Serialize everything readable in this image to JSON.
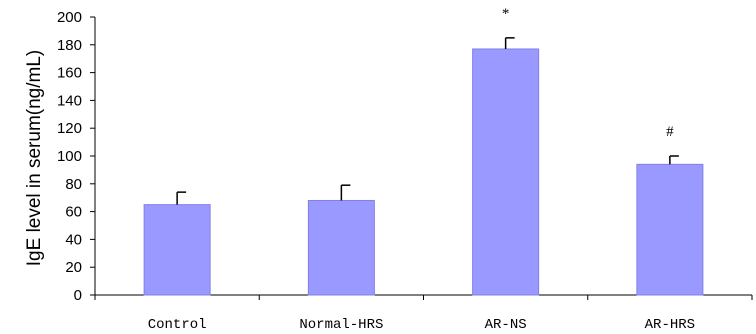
{
  "chart_data": {
    "type": "bar",
    "title": "",
    "xlabel": "",
    "ylabel": "IgE level in serum(ng/mL)",
    "categories": [
      "Control",
      "Normal-HRS",
      "AR-NS",
      "AR-HRS"
    ],
    "values": [
      65,
      68,
      177,
      94
    ],
    "error_plus": [
      9,
      11,
      8,
      6
    ],
    "annotations": [
      "",
      "",
      "*",
      "#"
    ],
    "yticks": [
      "0",
      "20",
      "40",
      "60",
      "80",
      "100",
      "120",
      "140",
      "160",
      "180",
      "200"
    ],
    "ylim": [
      0,
      200
    ],
    "grid": false,
    "bar_color": "#9999ff",
    "bar_edge_color": "#8080e6"
  }
}
